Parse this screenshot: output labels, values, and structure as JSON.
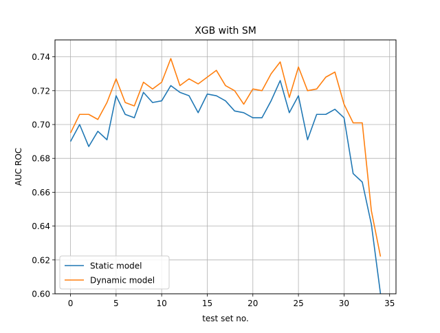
{
  "chart_data": {
    "type": "line",
    "title": "XGB with SM",
    "xlabel": "test set no.",
    "ylabel": "AUC ROC",
    "xlim": [
      -1.7,
      35.7
    ],
    "ylim": [
      0.6,
      0.75
    ],
    "xticks": [
      0,
      5,
      10,
      15,
      20,
      25,
      30,
      35
    ],
    "yticks": [
      0.6,
      0.62,
      0.64,
      0.66,
      0.68,
      0.7,
      0.72,
      0.74
    ],
    "grid": true,
    "legend_position": "lower-left",
    "x": [
      0,
      1,
      2,
      3,
      4,
      5,
      6,
      7,
      8,
      9,
      10,
      11,
      12,
      13,
      14,
      15,
      16,
      17,
      18,
      19,
      20,
      21,
      22,
      23,
      24,
      25,
      26,
      27,
      28,
      29,
      30,
      31,
      32,
      33,
      34
    ],
    "series": [
      {
        "name": "Static model",
        "color": "#1f77b4",
        "values": [
          0.69,
          0.7,
          0.687,
          0.696,
          0.691,
          0.717,
          0.706,
          0.704,
          0.719,
          0.713,
          0.714,
          0.723,
          0.719,
          0.717,
          0.707,
          0.718,
          0.717,
          0.714,
          0.708,
          0.707,
          0.704,
          0.704,
          0.714,
          0.726,
          0.707,
          0.717,
          0.691,
          0.706,
          0.706,
          0.709,
          0.704,
          0.671,
          0.666,
          0.641,
          0.6
        ]
      },
      {
        "name": "Dynamic model",
        "color": "#ff7f0e",
        "values": [
          0.695,
          0.706,
          0.706,
          0.703,
          0.713,
          0.727,
          0.713,
          0.711,
          0.725,
          0.721,
          0.725,
          0.739,
          0.723,
          0.727,
          0.724,
          0.728,
          0.732,
          0.723,
          0.72,
          0.712,
          0.721,
          0.72,
          0.73,
          0.737,
          0.716,
          0.734,
          0.72,
          0.721,
          0.728,
          0.731,
          0.712,
          0.701,
          0.701,
          0.649,
          0.622
        ]
      }
    ]
  }
}
